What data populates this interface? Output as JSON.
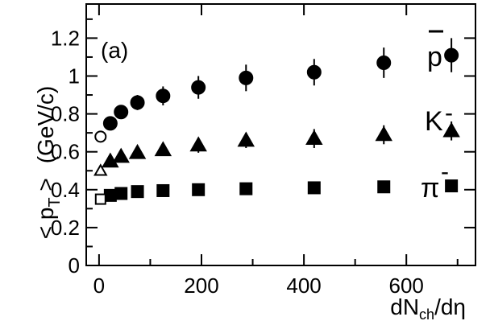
{
  "chart_data": {
    "type": "scatter",
    "panel_label": "(a)",
    "xlabel": "dN_ch/dη",
    "xlabel_main": "dN",
    "xlabel_sub": "ch",
    "xlabel_tail": "/dη",
    "ylabel": "< p_T > (GeV/c)",
    "ylabel_main": "< p",
    "ylabel_sub": "T",
    "ylabel_tail": " >",
    "ylabel_unit": "(GeV/c)",
    "xlim": [
      -25,
      735
    ],
    "ylim": [
      0,
      1.38
    ],
    "xticks": [
      0,
      200,
      400,
      600
    ],
    "xtick_labels": [
      "0",
      "200",
      "400",
      "600"
    ],
    "yticks": [
      0,
      0.2,
      0.4,
      0.6,
      0.8,
      1.0,
      1.2
    ],
    "ytick_labels": [
      "0",
      "0.2",
      "0.4",
      "0.6",
      "0.8",
      "1",
      "1.2"
    ],
    "series": [
      {
        "name": "p̄",
        "label_main": "p",
        "marker": "circle",
        "open_points": [
          {
            "x": 3,
            "y": 0.68
          }
        ],
        "points": [
          {
            "x": 22,
            "y": 0.75,
            "err": 0.03
          },
          {
            "x": 43,
            "y": 0.81,
            "err": 0.03
          },
          {
            "x": 75,
            "y": 0.86,
            "err": 0.04
          },
          {
            "x": 125,
            "y": 0.895,
            "err": 0.05
          },
          {
            "x": 194,
            "y": 0.94,
            "err": 0.06
          },
          {
            "x": 287,
            "y": 0.99,
            "err": 0.07
          },
          {
            "x": 420,
            "y": 1.02,
            "err": 0.07
          },
          {
            "x": 556,
            "y": 1.07,
            "err": 0.08
          },
          {
            "x": 688,
            "y": 1.11,
            "err": 0.09
          }
        ]
      },
      {
        "name": "K⁻",
        "label_main": "K",
        "marker": "triangle",
        "open_points": [
          {
            "x": 3,
            "y": 0.5
          }
        ],
        "points": [
          {
            "x": 22,
            "y": 0.55,
            "err": 0.02
          },
          {
            "x": 43,
            "y": 0.575,
            "err": 0.02
          },
          {
            "x": 75,
            "y": 0.595,
            "err": 0.02
          },
          {
            "x": 125,
            "y": 0.61,
            "err": 0.03
          },
          {
            "x": 194,
            "y": 0.635,
            "err": 0.04
          },
          {
            "x": 287,
            "y": 0.66,
            "err": 0.04
          },
          {
            "x": 420,
            "y": 0.67,
            "err": 0.05
          },
          {
            "x": 556,
            "y": 0.69,
            "err": 0.05
          },
          {
            "x": 688,
            "y": 0.71,
            "err": 0.05
          }
        ]
      },
      {
        "name": "π⁻",
        "label_main": "π",
        "marker": "square",
        "open_points": [
          {
            "x": 3,
            "y": 0.35
          }
        ],
        "points": [
          {
            "x": 22,
            "y": 0.37,
            "err": 0.0
          },
          {
            "x": 43,
            "y": 0.38,
            "err": 0.0
          },
          {
            "x": 75,
            "y": 0.39,
            "err": 0.0
          },
          {
            "x": 125,
            "y": 0.395,
            "err": 0.0
          },
          {
            "x": 194,
            "y": 0.4,
            "err": 0.0
          },
          {
            "x": 287,
            "y": 0.405,
            "err": 0.0
          },
          {
            "x": 420,
            "y": 0.41,
            "err": 0.0
          },
          {
            "x": 556,
            "y": 0.415,
            "err": 0.0
          },
          {
            "x": 688,
            "y": 0.42,
            "err": 0.0
          }
        ]
      }
    ],
    "grid": false,
    "legend": "none"
  }
}
